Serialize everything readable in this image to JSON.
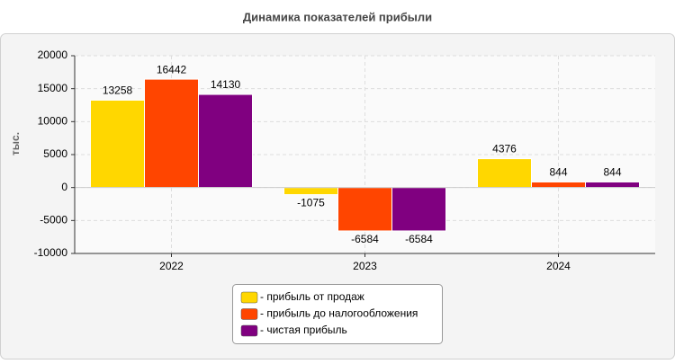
{
  "chart_data": {
    "type": "bar",
    "title": "Динамика показателей прибыли",
    "y_label": "тыс.",
    "categories": [
      "2022",
      "2023",
      "2024"
    ],
    "series": [
      {
        "name": "- прибыль от продаж",
        "color": "#ffd700",
        "values": [
          13258,
          -1075,
          4376
        ]
      },
      {
        "name": "- прибыль до налогообложения",
        "color": "#ff4500",
        "values": [
          16442,
          -6584,
          844
        ]
      },
      {
        "name": "- чистая прибыль",
        "color": "#800080",
        "values": [
          14130,
          -6584,
          844
        ]
      }
    ],
    "ylim": [
      -10000,
      20000
    ],
    "yticks": [
      -10000,
      -5000,
      0,
      5000,
      10000,
      15000,
      20000
    ],
    "grid": true,
    "legend": "bottom"
  }
}
